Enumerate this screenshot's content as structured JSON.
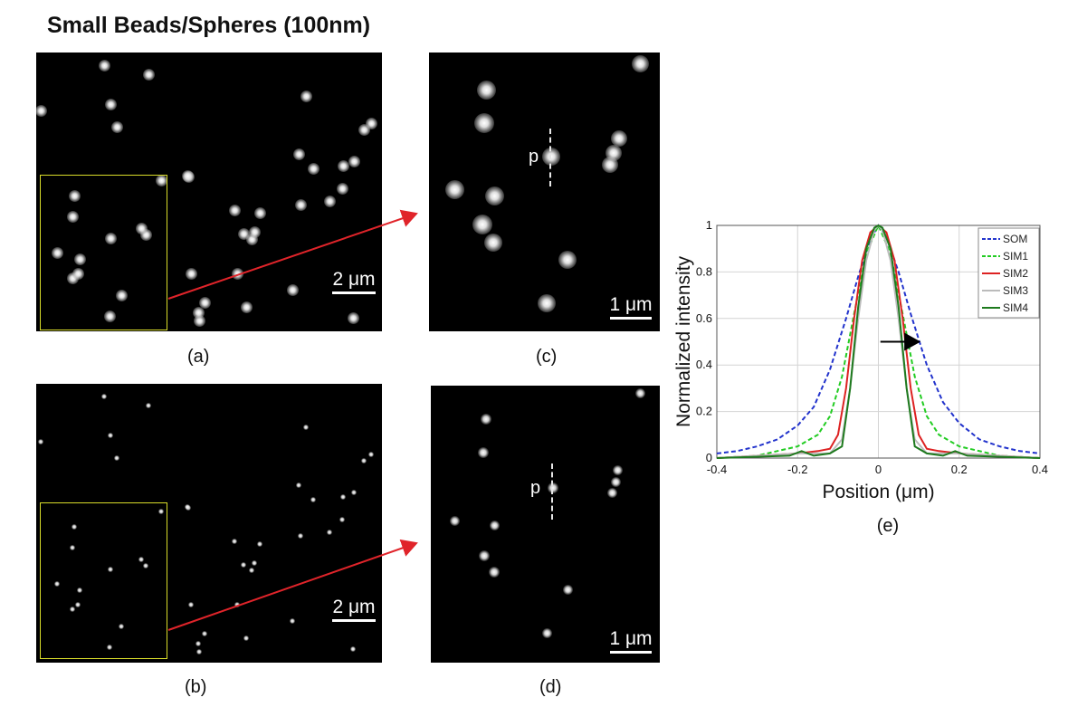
{
  "title": "Small Beads/Spheres (100nm)",
  "panels": {
    "a": {
      "label": "(a)",
      "scale_label": "2 μm"
    },
    "b": {
      "label": "(b)",
      "scale_label": "2 μm"
    },
    "c": {
      "label": "(c)",
      "scale_label": "1 μm",
      "profile_marker": "p"
    },
    "d": {
      "label": "(d)",
      "scale_label": "1 μm",
      "profile_marker": "p"
    },
    "e": {
      "label": "(e)"
    }
  },
  "colors": {
    "roi": "#d9dc2a",
    "zoom_arrow": "#e0242a"
  },
  "chart_data": {
    "type": "line",
    "xlabel": "Position (μm)",
    "ylabel": "Normalized intensity",
    "xlim": [
      -0.4,
      0.4
    ],
    "ylim": [
      0,
      1
    ],
    "xticks": [
      -0.4,
      -0.2,
      0,
      0.2,
      0.4
    ],
    "yticks": [
      0,
      0.2,
      0.4,
      0.6,
      0.8,
      1
    ],
    "grid": true,
    "legend_position": "top-right",
    "annotation": "black arrow pointing right toward the SOM curve near x≈0.11, y≈0.5",
    "series": [
      {
        "name": "SOM",
        "color": "#2233cc",
        "dash": "dashed",
        "x": [
          -0.4,
          -0.35,
          -0.3,
          -0.25,
          -0.2,
          -0.16,
          -0.12,
          -0.08,
          -0.05,
          -0.02,
          0,
          0.02,
          0.05,
          0.08,
          0.12,
          0.16,
          0.2,
          0.25,
          0.3,
          0.35,
          0.4
        ],
        "y": [
          0.02,
          0.03,
          0.05,
          0.08,
          0.14,
          0.22,
          0.38,
          0.6,
          0.78,
          0.94,
          1,
          0.95,
          0.8,
          0.62,
          0.4,
          0.24,
          0.15,
          0.08,
          0.05,
          0.03,
          0.02
        ]
      },
      {
        "name": "SIM1",
        "color": "#22cc22",
        "dash": "dashed",
        "x": [
          -0.4,
          -0.3,
          -0.2,
          -0.15,
          -0.12,
          -0.09,
          -0.06,
          -0.03,
          0,
          0.03,
          0.06,
          0.09,
          0.12,
          0.15,
          0.2,
          0.3,
          0.4
        ],
        "y": [
          0.0,
          0.01,
          0.05,
          0.1,
          0.18,
          0.35,
          0.62,
          0.88,
          1,
          0.88,
          0.62,
          0.35,
          0.18,
          0.1,
          0.05,
          0.01,
          0.0
        ]
      },
      {
        "name": "SIM2",
        "color": "#dd2222",
        "dash": "solid",
        "x": [
          -0.4,
          -0.2,
          -0.15,
          -0.12,
          -0.1,
          -0.08,
          -0.06,
          -0.04,
          -0.02,
          0,
          0.02,
          0.04,
          0.06,
          0.08,
          0.1,
          0.12,
          0.15,
          0.2,
          0.4
        ],
        "y": [
          0.0,
          0.02,
          0.03,
          0.04,
          0.1,
          0.3,
          0.6,
          0.85,
          0.97,
          1,
          0.97,
          0.85,
          0.6,
          0.3,
          0.1,
          0.04,
          0.03,
          0.02,
          0.0
        ]
      },
      {
        "name": "SIM3",
        "color": "#bbbbbb",
        "dash": "solid",
        "x": [
          -0.4,
          -0.2,
          -0.12,
          -0.09,
          -0.07,
          -0.05,
          -0.03,
          -0.01,
          0,
          0.01,
          0.03,
          0.05,
          0.07,
          0.09,
          0.12,
          0.2,
          0.4
        ],
        "y": [
          0.0,
          0.02,
          0.02,
          0.08,
          0.3,
          0.6,
          0.85,
          0.98,
          1,
          0.98,
          0.85,
          0.6,
          0.3,
          0.08,
          0.02,
          0.02,
          0.0
        ]
      },
      {
        "name": "SIM4",
        "color": "#1e7a1e",
        "dash": "solid",
        "x": [
          -0.4,
          -0.22,
          -0.19,
          -0.16,
          -0.12,
          -0.09,
          -0.07,
          -0.05,
          -0.03,
          -0.01,
          0,
          0.01,
          0.03,
          0.05,
          0.07,
          0.09,
          0.12,
          0.16,
          0.19,
          0.22,
          0.4
        ],
        "y": [
          0.0,
          0.01,
          0.03,
          0.01,
          0.02,
          0.05,
          0.3,
          0.65,
          0.9,
          0.99,
          1,
          0.99,
          0.9,
          0.65,
          0.3,
          0.05,
          0.02,
          0.01,
          0.03,
          0.01,
          0.0
        ]
      }
    ]
  }
}
